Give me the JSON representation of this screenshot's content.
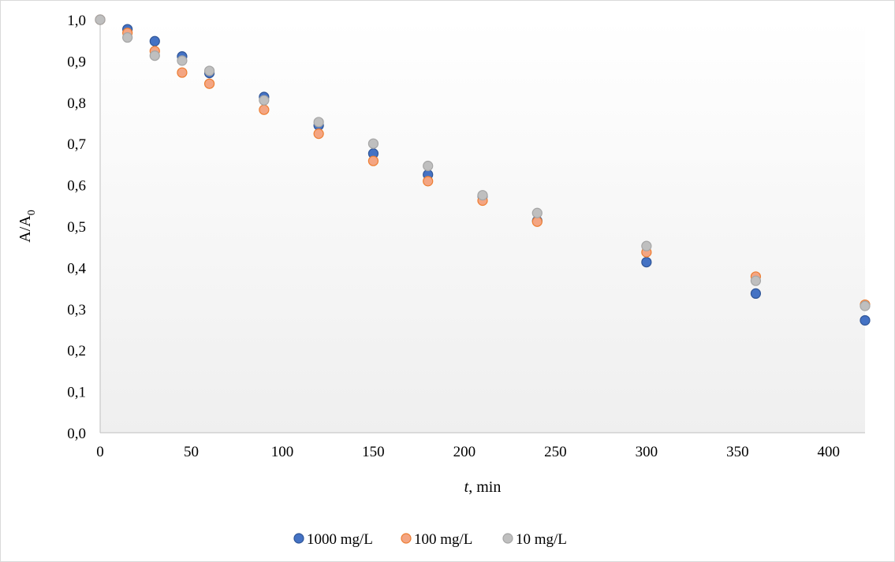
{
  "chart_data": {
    "type": "scatter",
    "title": "",
    "xlabel": {
      "italic": "t",
      "rest": ", min"
    },
    "ylabel": {
      "main": "A/A",
      "sub": "0"
    },
    "xlim": [
      0,
      420
    ],
    "ylim": [
      0,
      1.0
    ],
    "x_ticks": [
      "0",
      "50",
      "100",
      "150",
      "200",
      "250",
      "300",
      "350",
      "400"
    ],
    "y_ticks": [
      "0,0",
      "0,1",
      "0,2",
      "0,3",
      "0,4",
      "0,5",
      "0,6",
      "0,7",
      "0,8",
      "0,9",
      "1,0"
    ],
    "x": [
      0,
      15,
      30,
      45,
      60,
      90,
      120,
      150,
      180,
      210,
      240,
      300,
      360,
      420
    ],
    "grid": false,
    "legend_position": "bottom",
    "series": [
      {
        "name": "1000 mg/L",
        "color": "#4472C4",
        "edge": "#2F5597",
        "values": [
          1.0,
          0.977,
          0.948,
          0.911,
          0.871,
          0.813,
          0.744,
          0.676,
          0.625,
          0.573,
          0.513,
          0.413,
          0.337,
          0.272
        ]
      },
      {
        "name": "100 mg/L",
        "color": "#F4A582",
        "edge": "#ED7D31",
        "values": [
          1.0,
          0.968,
          0.924,
          0.872,
          0.845,
          0.782,
          0.724,
          0.658,
          0.609,
          0.562,
          0.511,
          0.437,
          0.378,
          0.31
        ]
      },
      {
        "name": "10 mg/L",
        "color": "#BFBFBF",
        "edge": "#A5A5A5",
        "values": [
          1.0,
          0.957,
          0.913,
          0.901,
          0.876,
          0.805,
          0.752,
          0.7,
          0.646,
          0.575,
          0.532,
          0.452,
          0.368,
          0.307
        ]
      }
    ]
  }
}
